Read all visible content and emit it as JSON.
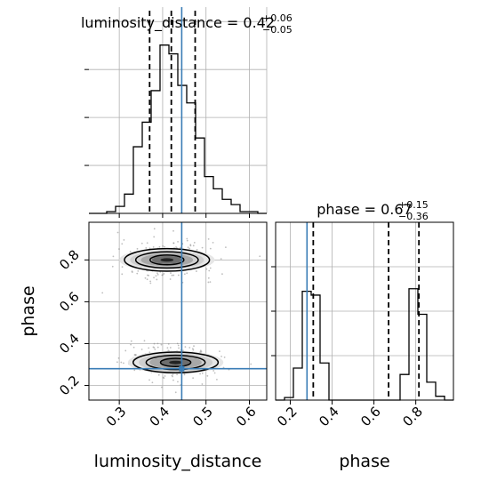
{
  "chart_data": {
    "type": "corner",
    "parameters": [
      "luminosity_distance",
      "phase"
    ],
    "titles": {
      "luminosity_distance": {
        "prefix": "luminosity_distance = 0.42",
        "plus": "+0.06",
        "minus": "−0.05"
      },
      "phase": {
        "prefix": "phase = 0.67",
        "plus": "+0.15",
        "minus": "−0.36"
      }
    },
    "axis_labels": {
      "x_left": "luminosity_distance",
      "x_right": "phase",
      "y_left": "phase"
    },
    "truth": {
      "luminosity_distance": 0.444,
      "phase": 0.28
    },
    "ranges": {
      "luminosity_distance": [
        0.23,
        0.64
      ],
      "phase": [
        0.13,
        0.98
      ]
    },
    "ticks": {
      "luminosity_distance": [
        {
          "v": 0.3,
          "label": "0.3"
        },
        {
          "v": 0.4,
          "label": "0.4"
        },
        {
          "v": 0.5,
          "label": "0.5"
        },
        {
          "v": 0.6,
          "label": "0.6"
        }
      ],
      "phase": [
        {
          "v": 0.2,
          "label": "0.2"
        },
        {
          "v": 0.4,
          "label": "0.4"
        },
        {
          "v": 0.6,
          "label": "0.6"
        },
        {
          "v": 0.8,
          "label": "0.8"
        }
      ]
    },
    "hist_luminosity_distance": {
      "quantiles": [
        0.37,
        0.42,
        0.475
      ],
      "edges": [
        0.23,
        0.2505,
        0.271,
        0.2915,
        0.312,
        0.3325,
        0.353,
        0.3735,
        0.394,
        0.4145,
        0.435,
        0.4555,
        0.476,
        0.4965,
        0.517,
        0.5375,
        0.558,
        0.5785,
        0.599,
        0.6195,
        0.64
      ],
      "heights": [
        0.0,
        0.0,
        0.01,
        0.04,
        0.11,
        0.38,
        0.52,
        0.7,
        0.96,
        0.91,
        0.73,
        0.63,
        0.43,
        0.21,
        0.14,
        0.08,
        0.05,
        0.01,
        0.01,
        0.0
      ]
    },
    "hist_phase": {
      "quantiles": [
        0.31,
        0.67,
        0.815
      ],
      "edges": [
        0.13,
        0.1725,
        0.215,
        0.2575,
        0.3,
        0.3425,
        0.385,
        0.4275,
        0.47,
        0.5125,
        0.555,
        0.5975,
        0.64,
        0.6825,
        0.725,
        0.7675,
        0.81,
        0.8525,
        0.895,
        0.9375,
        0.98
      ],
      "heights": [
        0.0,
        0.02,
        0.25,
        0.85,
        0.82,
        0.29,
        0.0,
        0.0,
        0.0,
        0.0,
        0.0,
        0.0,
        0.0,
        0.0,
        0.2,
        0.87,
        0.67,
        0.14,
        0.03,
        0.0
      ]
    },
    "density_2d": {
      "modes": [
        {
          "x": 0.41,
          "y": 0.8,
          "contours": [
            [
              0.039,
              0.042
            ],
            [
              0.072,
              0.07
            ],
            [
              0.098,
              0.098
            ]
          ]
        },
        {
          "x": 0.43,
          "y": 0.31,
          "contours": [
            [
              0.035,
              0.036
            ],
            [
              0.068,
              0.062
            ],
            [
              0.098,
              0.09
            ]
          ]
        }
      ]
    },
    "grid": true
  }
}
